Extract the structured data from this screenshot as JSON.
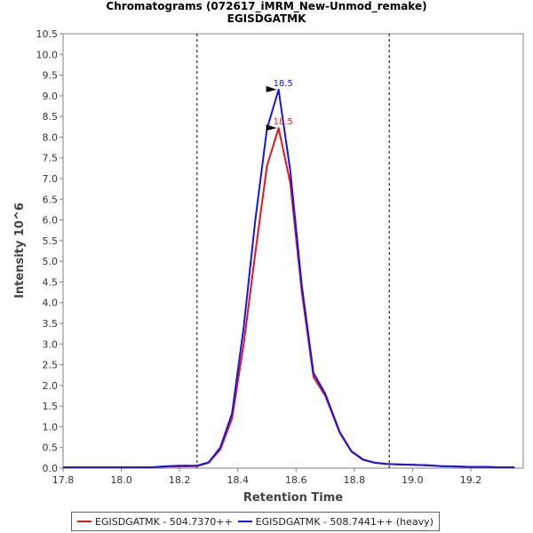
{
  "chart_data": {
    "type": "line",
    "title": "Chromatograms (072617_iMRM_New-Unmod_remake)",
    "subtitle": "EGISDGATMK",
    "xlabel": "Retention Time",
    "ylabel": "Intensity 10^6",
    "xlim": [
      17.8,
      19.38
    ],
    "ylim": [
      0,
      10.5
    ],
    "x_ticks": [
      "17.8",
      "18.0",
      "18.2",
      "18.4",
      "18.6",
      "18.8",
      "19.0",
      "19.2"
    ],
    "y_ticks": [
      "0.0",
      "0.5",
      "1.0",
      "1.5",
      "2.0",
      "2.5",
      "3.0",
      "3.5",
      "4.0",
      "4.5",
      "5.0",
      "5.5",
      "6.0",
      "6.5",
      "7.0",
      "7.5",
      "8.0",
      "8.5",
      "9.0",
      "9.5",
      "10.0",
      "10.5"
    ],
    "integration_bounds": [
      18.26,
      18.92
    ],
    "legend_position": "bottom",
    "series": [
      {
        "name": "EGISDGATMK - 504.7370++",
        "color": "#e8141e",
        "peak_label": "18.5",
        "x": [
          17.8,
          17.9,
          18.0,
          18.1,
          18.16,
          18.2,
          18.26,
          18.3,
          18.34,
          18.38,
          18.42,
          18.46,
          18.5,
          18.54,
          18.58,
          18.62,
          18.66,
          18.7,
          18.75,
          18.79,
          18.83,
          18.87,
          18.91,
          18.95,
          19.0,
          19.05,
          19.1,
          19.15,
          19.2,
          19.25,
          19.3,
          19.35
        ],
        "values": [
          0.02,
          0.02,
          0.02,
          0.02,
          0.04,
          0.04,
          0.05,
          0.13,
          0.45,
          1.2,
          3.0,
          5.2,
          7.3,
          8.22,
          6.9,
          4.25,
          2.2,
          1.75,
          0.85,
          0.4,
          0.2,
          0.13,
          0.1,
          0.09,
          0.08,
          0.07,
          0.05,
          0.04,
          0.03,
          0.03,
          0.02,
          0.02
        ]
      },
      {
        "name": "EGISDGATMK - 508.7441++ (heavy)",
        "color": "#1414e8",
        "peak_label": "18.5",
        "x": [
          17.8,
          17.9,
          18.0,
          18.1,
          18.16,
          18.2,
          18.26,
          18.3,
          18.34,
          18.38,
          18.42,
          18.46,
          18.5,
          18.54,
          18.58,
          18.62,
          18.66,
          18.7,
          18.75,
          18.79,
          18.83,
          18.87,
          18.91,
          18.95,
          19.0,
          19.05,
          19.1,
          19.15,
          19.2,
          19.25,
          19.3,
          19.35
        ],
        "values": [
          0.02,
          0.02,
          0.02,
          0.02,
          0.05,
          0.06,
          0.06,
          0.14,
          0.5,
          1.32,
          3.4,
          6.0,
          8.2,
          9.15,
          7.2,
          4.4,
          2.3,
          1.8,
          0.87,
          0.41,
          0.21,
          0.13,
          0.1,
          0.09,
          0.08,
          0.07,
          0.05,
          0.04,
          0.03,
          0.03,
          0.02,
          0.02
        ]
      }
    ]
  }
}
